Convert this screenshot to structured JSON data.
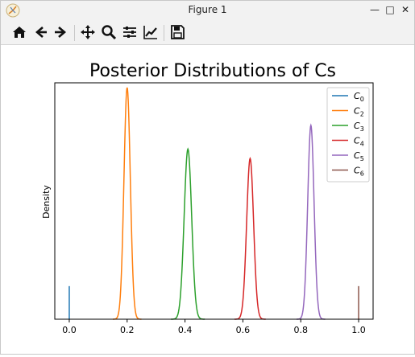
{
  "window": {
    "title": "Figure 1",
    "minimize": "—",
    "maximize": "□",
    "close": "✕"
  },
  "toolbar": {
    "buttons": [
      "home-icon",
      "back-icon",
      "forward-icon",
      "pan-icon",
      "zoom-icon",
      "configure-subplots-icon",
      "edit-axes-icon",
      "save-icon"
    ]
  },
  "colors": {
    "C0": "#1f77b4",
    "C2": "#ff7f0e",
    "C3": "#2ca02c",
    "C4": "#d62728",
    "C5": "#9467bd",
    "C6": "#8c564b"
  },
  "chart_data": {
    "type": "line",
    "title": "Posterior Distributions of Cs",
    "xlabel": "",
    "ylabel": "Density",
    "xlim": [
      -0.05,
      1.05
    ],
    "ylim": [
      0,
      1.0
    ],
    "xticks": [
      "0.0",
      "0.2",
      "0.4",
      "0.6",
      "0.8",
      "1.0"
    ],
    "xtick_values": [
      0.0,
      0.2,
      0.4,
      0.6,
      0.8,
      1.0
    ],
    "yticks_visible": false,
    "legend_position": "top-right",
    "series": [
      {
        "name": "C",
        "sub": "0",
        "kind": "spike",
        "center": 0.0,
        "peak": 0.14
      },
      {
        "name": "C",
        "sub": "2",
        "kind": "density",
        "center": 0.2,
        "sigma": 0.011,
        "peak": 0.98
      },
      {
        "name": "C",
        "sub": "3",
        "kind": "density",
        "center": 0.41,
        "sigma": 0.013,
        "peak": 0.72
      },
      {
        "name": "C",
        "sub": "4",
        "kind": "density",
        "center": 0.625,
        "sigma": 0.012,
        "peak": 0.68
      },
      {
        "name": "C",
        "sub": "5",
        "kind": "density",
        "center": 0.835,
        "sigma": 0.011,
        "peak": 0.82
      },
      {
        "name": "C",
        "sub": "6",
        "kind": "spike",
        "center": 1.0,
        "peak": 0.14
      }
    ]
  }
}
